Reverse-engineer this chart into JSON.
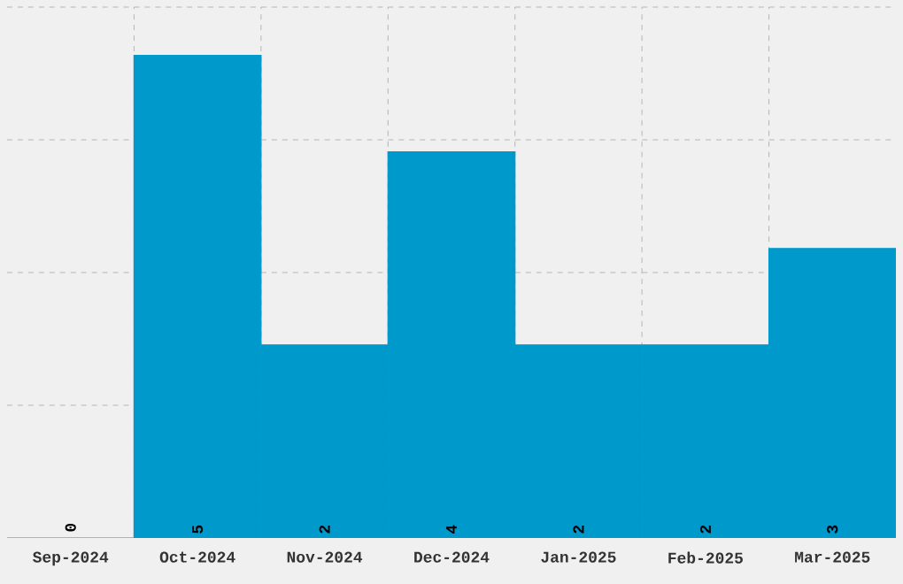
{
  "chart_data": {
    "type": "bar",
    "categories": [
      "Sep-2024",
      "Oct-2024",
      "Nov-2024",
      "Dec-2024",
      "Jan-2025",
      "Feb-2025",
      "Mar-2025"
    ],
    "values": [
      0,
      5,
      2,
      4,
      2,
      2,
      3
    ],
    "color": "#0099cc",
    "ylim": [
      0,
      5.5
    ],
    "yticks": [
      {
        "value": 1.375,
        "label": null
      },
      {
        "value": 2.75,
        "label": null
      },
      {
        "value": 4.125,
        "label": null
      },
      {
        "value": 5.5,
        "label": null
      }
    ],
    "tick_labels": "x",
    "grid": true,
    "data_labels": true
  }
}
